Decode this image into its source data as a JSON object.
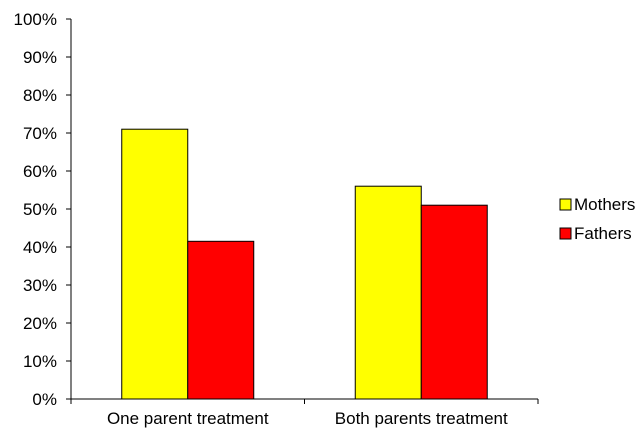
{
  "chart_data": {
    "type": "bar",
    "categories": [
      "One parent treatment",
      "Both parents treatment"
    ],
    "series": [
      {
        "name": "Mothers",
        "values": [
          71,
          56
        ],
        "color": "#ffff00"
      },
      {
        "name": "Fathers",
        "values": [
          41.5,
          51
        ],
        "color": "#ff0000"
      }
    ],
    "ylim": [
      0,
      100
    ],
    "yticks": [
      "0%",
      "10%",
      "20%",
      "30%",
      "40%",
      "50%",
      "60%",
      "70%",
      "80%",
      "90%",
      "100%"
    ],
    "grid": false,
    "legend": "right"
  }
}
